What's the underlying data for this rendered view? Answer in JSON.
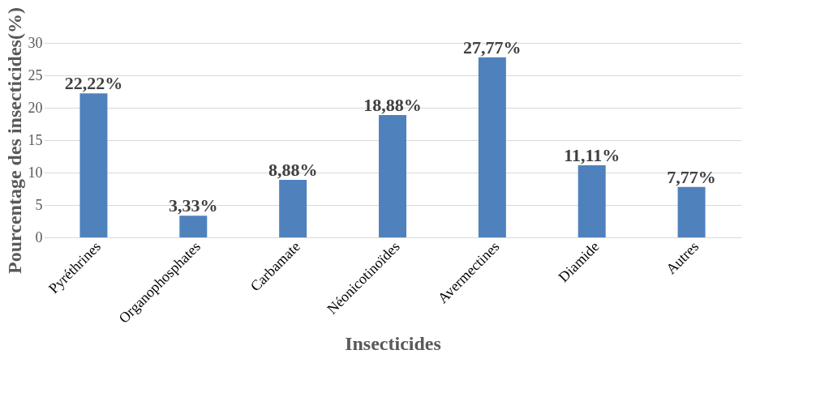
{
  "chart_data": {
    "type": "bar",
    "xlabel": "Insecticides",
    "ylabel": "Pourcentage  des insecticides(%)",
    "categories": [
      "Pyréthrines",
      "Organophosphates",
      "Carbamate",
      "Néonicotinoïdes",
      "Avermectines",
      "Diamide",
      "Autres"
    ],
    "values": [
      22.22,
      3.33,
      8.88,
      18.88,
      27.77,
      11.11,
      7.77
    ],
    "value_labels": [
      "22,22%",
      "3,33%",
      "8,88%",
      "18,88%",
      "27,77%",
      "11,11%",
      "7,77%"
    ],
    "color": "#4f81bd",
    "ylim": [
      0,
      30
    ],
    "yticks": [
      0,
      5,
      10,
      15,
      20,
      25,
      30
    ],
    "grid": "y"
  }
}
